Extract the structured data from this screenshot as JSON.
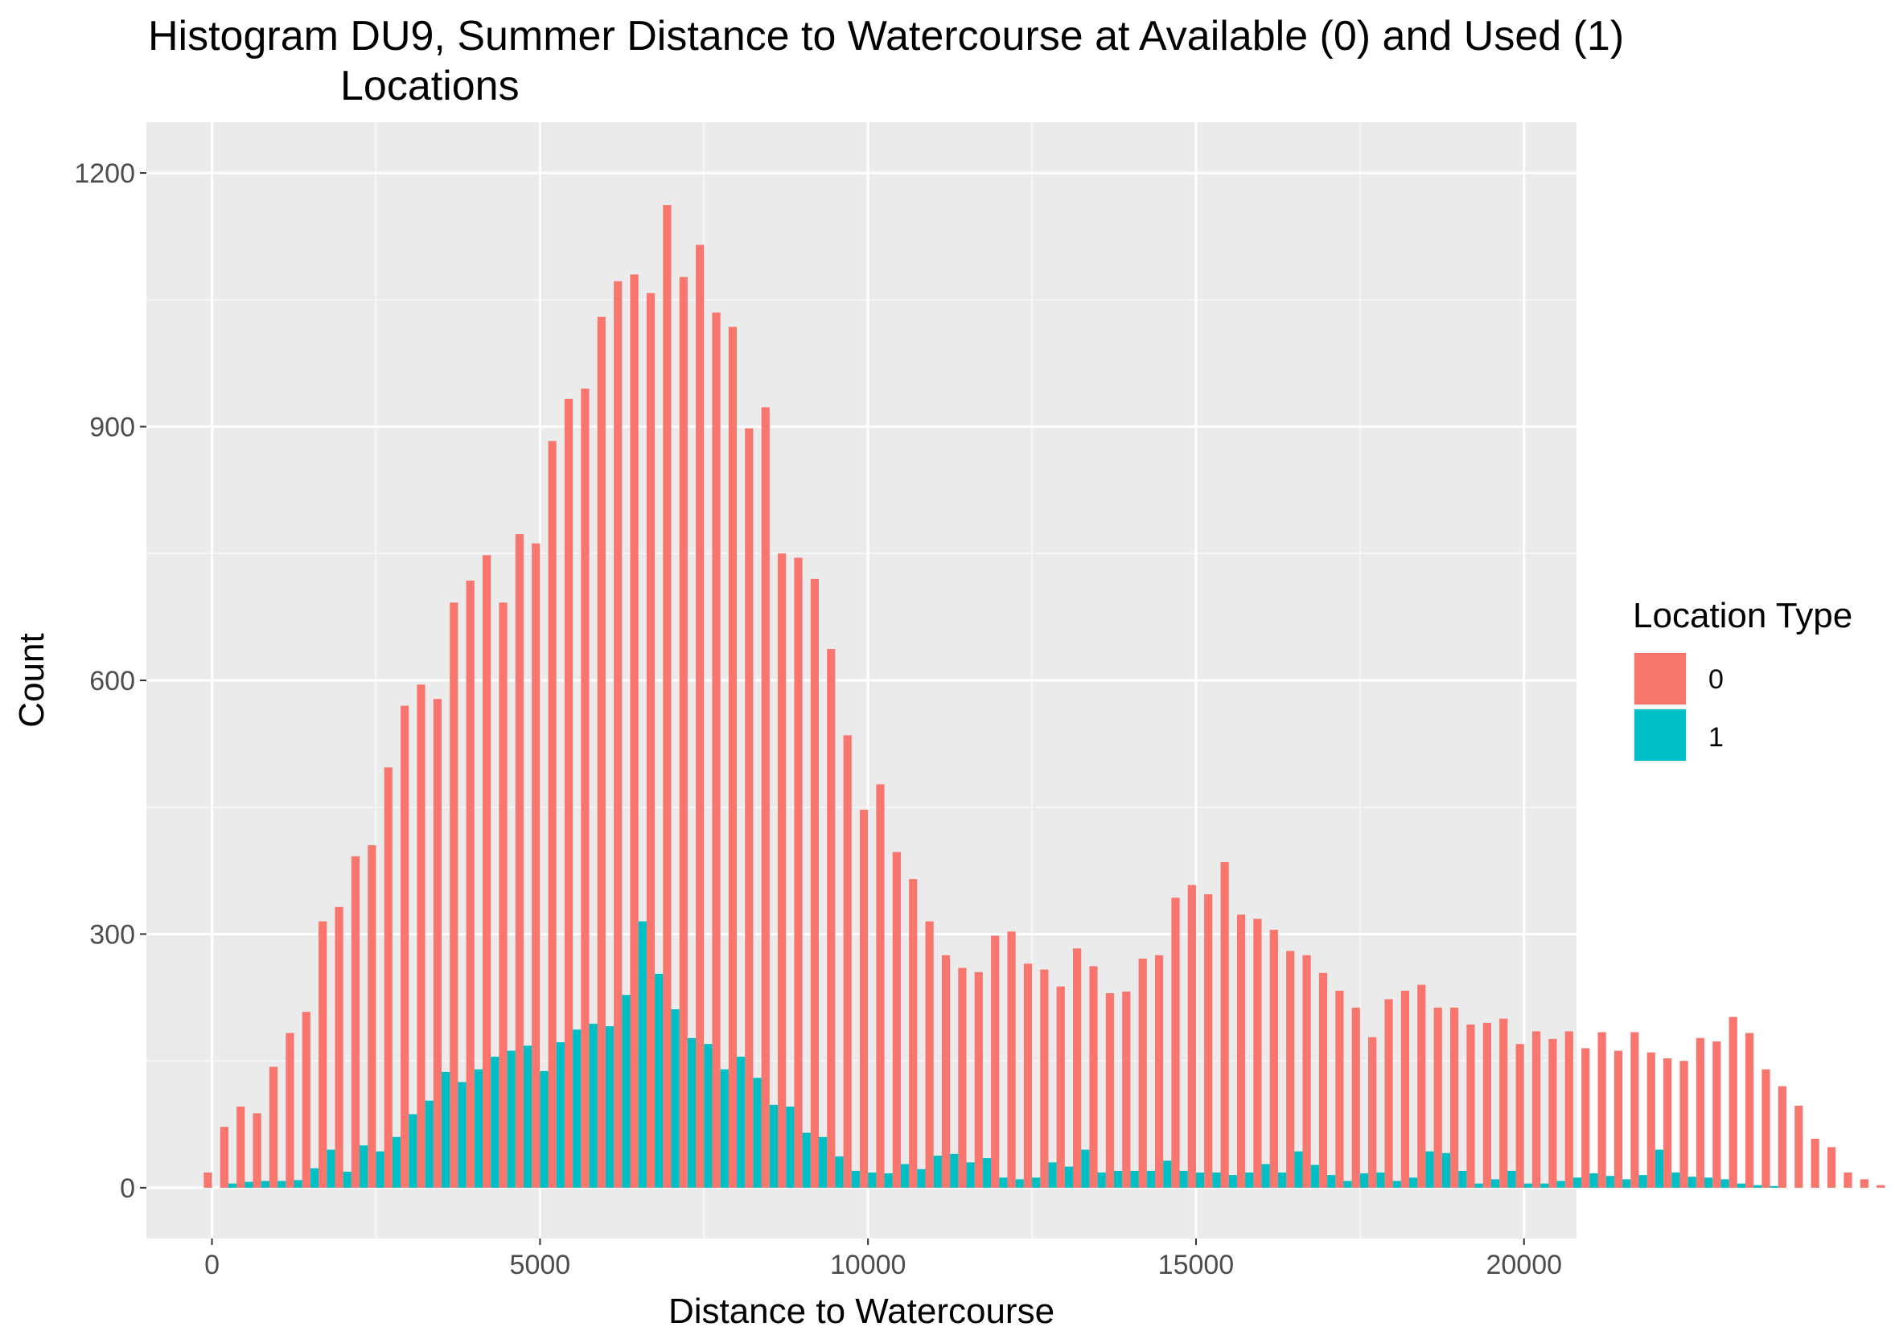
{
  "chart_data": {
    "type": "bar",
    "title_line1": "Histogram DU9, Summer Distance to Watercourse at Available (0) and Used (1)",
    "title_line2": "Locations",
    "xlabel": "Distance to Watercourse",
    "ylabel": "Count",
    "xlim": [
      -1000,
      20800
    ],
    "ylim": [
      -60,
      1260
    ],
    "x_ticks": [
      0,
      5000,
      10000,
      15000,
      20000
    ],
    "x_tick_labels": [
      "0",
      "5000",
      "10000",
      "15000",
      "20000"
    ],
    "y_ticks": [
      0,
      300,
      600,
      900,
      1200
    ],
    "y_tick_labels": [
      "0",
      "300",
      "600",
      "900",
      "1200"
    ],
    "grid": true,
    "legend_position": "right",
    "legend_title": "Location Type",
    "bin_width": 250,
    "bin_start": 0,
    "series": [
      {
        "name": "0",
        "color": "#F8766D",
        "values": [
          18,
          72,
          96,
          88,
          143,
          183,
          208,
          315,
          332,
          392,
          405,
          497,
          570,
          595,
          578,
          692,
          718,
          748,
          692,
          773,
          762,
          883,
          933,
          945,
          1030,
          1072,
          1080,
          1058,
          1162,
          1077,
          1115,
          1035,
          1018,
          898,
          923,
          750,
          745,
          720,
          637,
          535,
          447,
          477,
          397,
          365,
          315,
          275,
          260,
          255,
          298,
          303,
          265,
          258,
          238,
          283,
          262,
          230,
          232,
          271,
          275,
          343,
          358,
          347,
          385,
          323,
          318,
          305,
          280,
          275,
          254,
          233,
          213,
          178,
          223,
          233,
          240,
          213,
          213,
          193,
          195,
          200,
          170,
          185,
          176,
          185,
          165,
          184,
          162,
          184,
          160,
          153,
          150,
          177,
          173,
          202,
          183,
          140,
          120,
          97,
          58,
          48,
          18,
          10,
          3,
          0
        ]
      },
      {
        "name": "1",
        "color": "#00BFC4",
        "values": [
          0,
          5,
          7,
          8,
          8,
          9,
          23,
          45,
          19,
          50,
          43,
          60,
          87,
          103,
          137,
          125,
          140,
          155,
          162,
          168,
          138,
          172,
          187,
          194,
          191,
          228,
          315,
          253,
          211,
          177,
          170,
          140,
          155,
          130,
          98,
          96,
          65,
          60,
          37,
          20,
          18,
          17,
          28,
          22,
          38,
          40,
          30,
          35,
          12,
          10,
          12,
          30,
          25,
          45,
          18,
          20,
          20,
          20,
          32,
          20,
          18,
          18,
          15,
          18,
          28,
          18,
          43,
          27,
          15,
          8,
          17,
          18,
          8,
          12,
          43,
          41,
          20,
          5,
          10,
          20,
          5,
          5,
          8,
          12,
          17,
          14,
          10,
          15,
          45,
          18,
          13,
          12,
          10,
          5,
          3,
          2,
          0,
          0,
          0,
          0,
          0,
          0,
          0,
          0
        ]
      }
    ]
  }
}
